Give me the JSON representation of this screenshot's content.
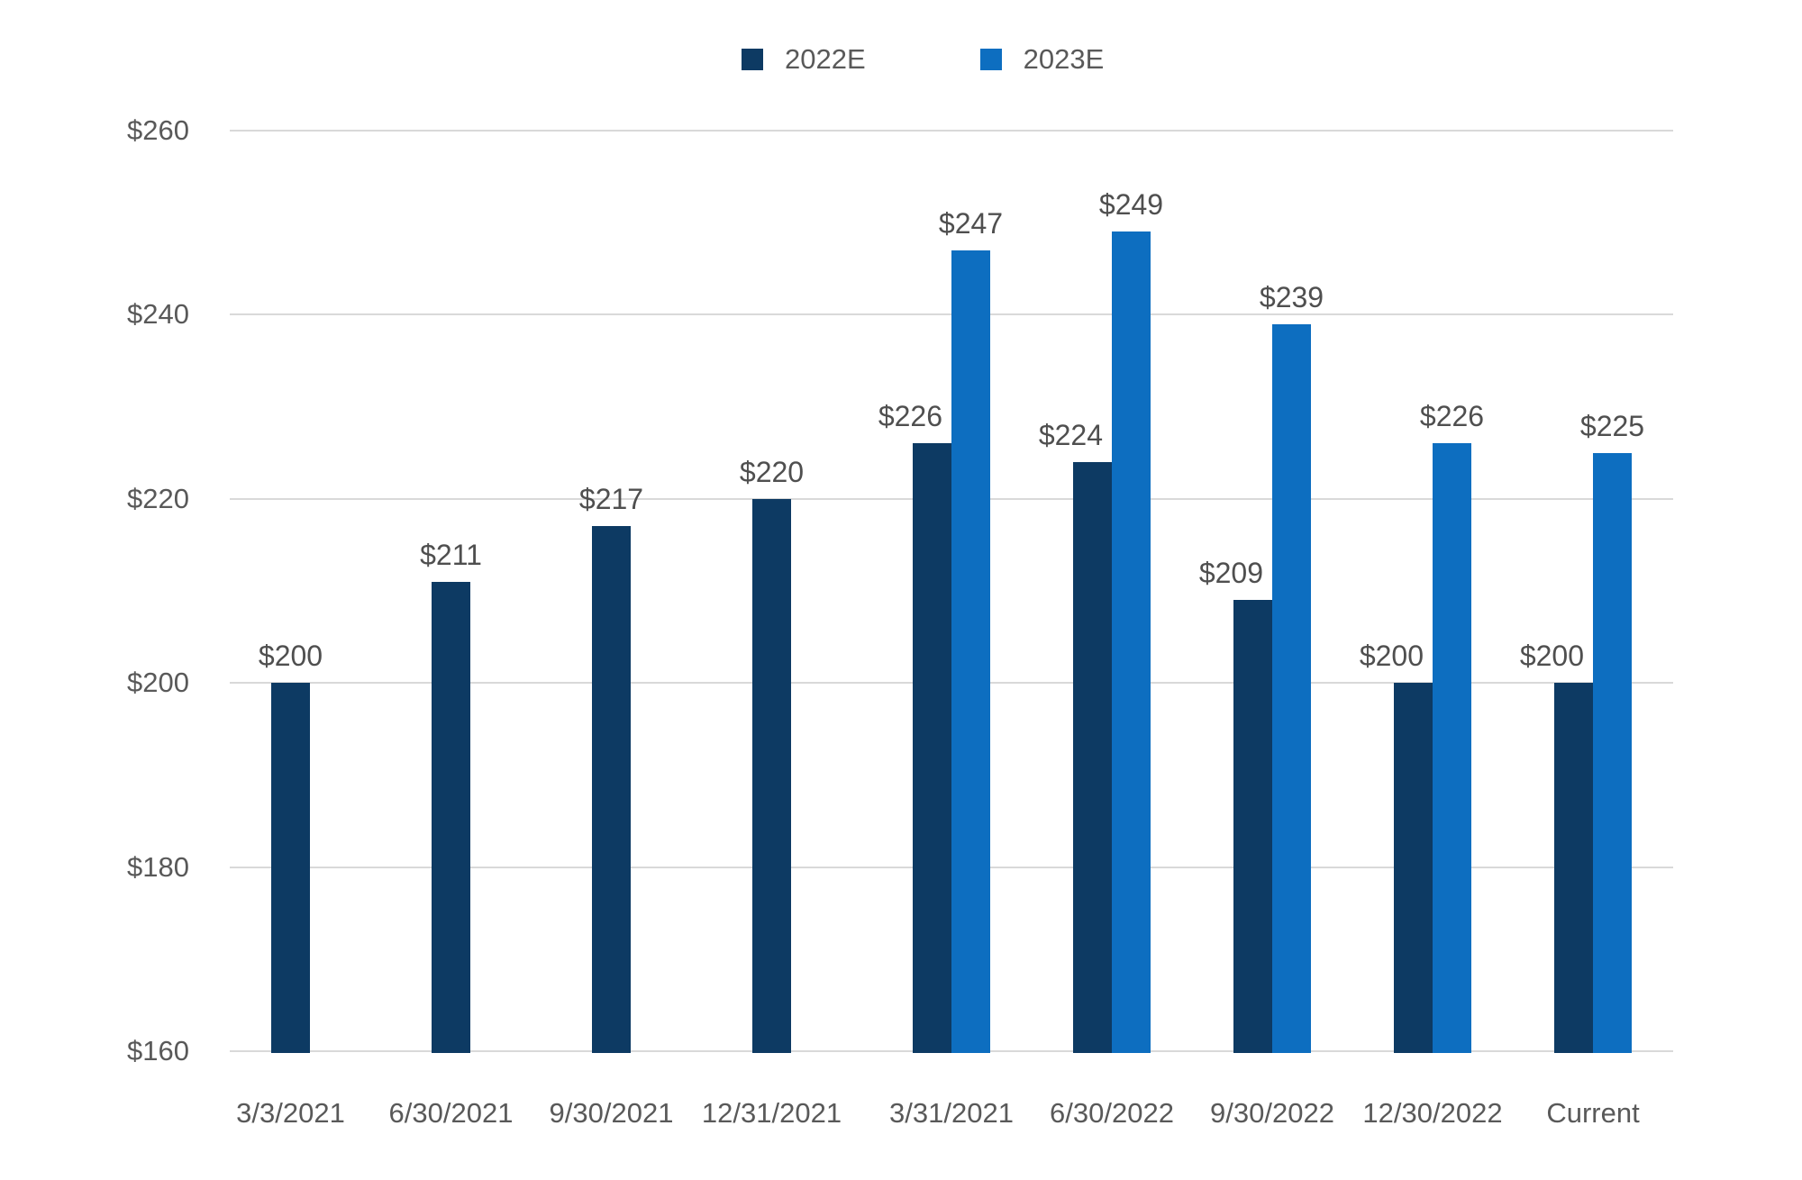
{
  "chart_data": {
    "type": "bar",
    "title": "",
    "categories": [
      "3/3/2021",
      "6/30/2021",
      "9/30/2021",
      "12/31/2021",
      "3/31/2021",
      "6/30/2022",
      "9/30/2022",
      "12/30/2022",
      "Current"
    ],
    "series": [
      {
        "name": "2022E",
        "color": "#0d3a63",
        "values": [
          200,
          211,
          217,
          220,
          226,
          224,
          209,
          200,
          200
        ],
        "labels": [
          "$200",
          "$211",
          "$217",
          "$220",
          "$226",
          "$224",
          "$209",
          "$200",
          "$200"
        ]
      },
      {
        "name": "2023E",
        "color": "#0d6ec0",
        "values": [
          null,
          null,
          null,
          null,
          247,
          249,
          239,
          226,
          225
        ],
        "labels": [
          null,
          null,
          null,
          null,
          "$247",
          "$249",
          "$239",
          "$226",
          "$225"
        ]
      }
    ],
    "ylim": [
      160,
      260
    ],
    "yticks": [
      160,
      180,
      200,
      220,
      240,
      260
    ],
    "ytick_labels": [
      "$160",
      "$180",
      "$200",
      "$220",
      "$240",
      "$260"
    ],
    "xlabel": "",
    "ylabel": "",
    "grid": "horizontal",
    "legend_position": "top-center"
  },
  "styles": {
    "background": "#ffffff",
    "gridline_color": "#d9d9d9",
    "axis_text_color": "#595959",
    "data_label_color": "#4f4f4f",
    "legend_text_color": "#595959"
  }
}
